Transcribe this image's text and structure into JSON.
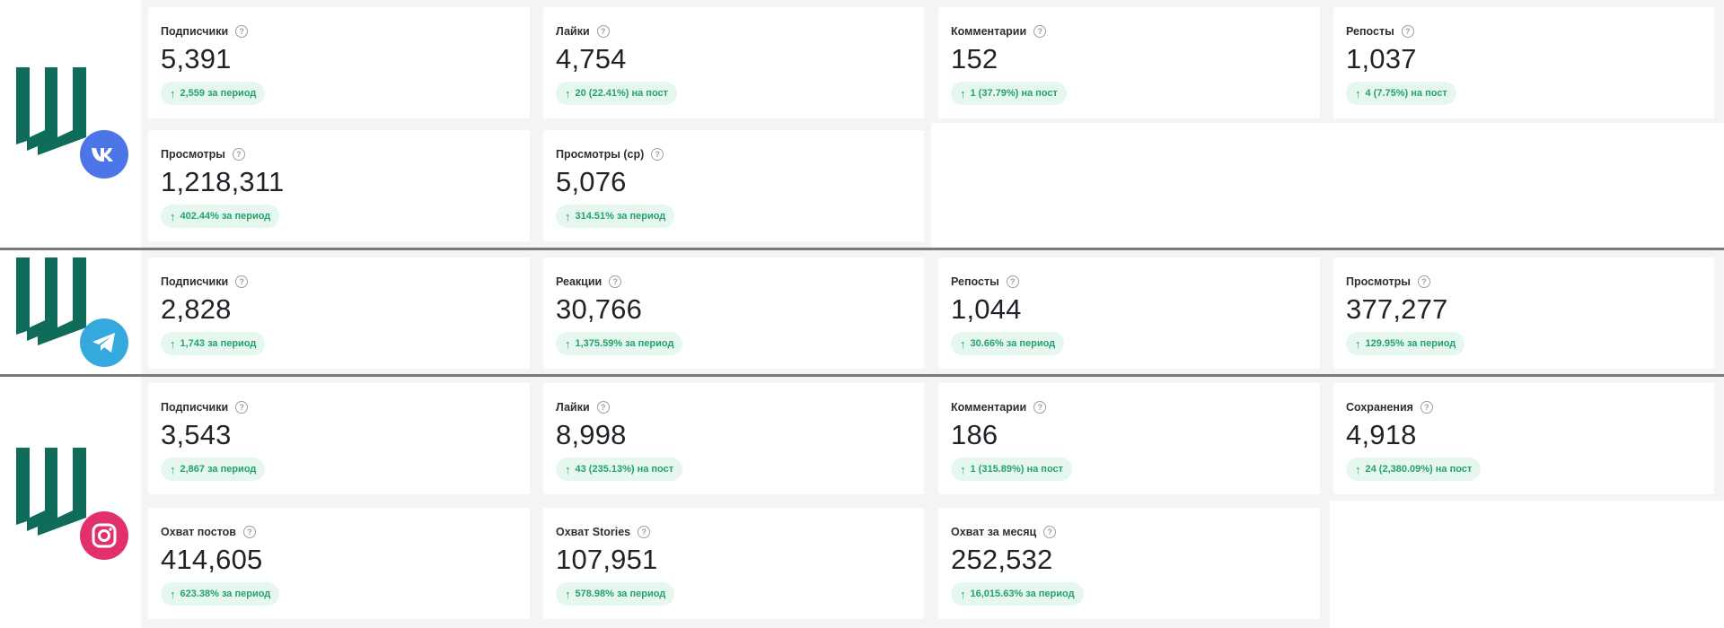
{
  "accent_color": "#23a36b",
  "brand_color": "#0f6b5a",
  "sections": [
    {
      "network": "vk",
      "network_icon": "vk-icon",
      "badge_color": "#4c75e8",
      "cards": [
        {
          "label": "Подписчики",
          "value": "5,391",
          "change": "2,559 за период"
        },
        {
          "label": "Лайки",
          "value": "4,754",
          "change": "20 (22.41%) на пост"
        },
        {
          "label": "Комментарии",
          "value": "152",
          "change": "1 (37.79%) на пост"
        },
        {
          "label": "Репосты",
          "value": "1,037",
          "change": "4 (7.75%) на пост"
        },
        {
          "label": "Просмотры",
          "value": "1,218,311",
          "change": "402.44% за период"
        },
        {
          "label": "Просмотры (ср)",
          "value": "5,076",
          "change": "314.51% за период"
        }
      ]
    },
    {
      "network": "telegram",
      "network_icon": "telegram-icon",
      "badge_color": "#35a8dd",
      "cards": [
        {
          "label": "Подписчики",
          "value": "2,828",
          "change": "1,743 за период"
        },
        {
          "label": "Реакции",
          "value": "30,766",
          "change": "1,375.59% за период"
        },
        {
          "label": "Репосты",
          "value": "1,044",
          "change": "30.66% за период"
        },
        {
          "label": "Просмотры",
          "value": "377,277",
          "change": "129.95% за период"
        }
      ]
    },
    {
      "network": "instagram",
      "network_icon": "instagram-icon",
      "badge_color": "#e1306c",
      "cards": [
        {
          "label": "Подписчики",
          "value": "3,543",
          "change": "2,867 за период"
        },
        {
          "label": "Лайки",
          "value": "8,998",
          "change": "43 (235.13%) на пост"
        },
        {
          "label": "Комментарии",
          "value": "186",
          "change": "1 (315.89%) на пост"
        },
        {
          "label": "Сохранения",
          "value": "4,918",
          "change": "24 (2,380.09%) на пост"
        },
        {
          "label": "Охват постов",
          "value": "414,605",
          "change": "623.38% за период"
        },
        {
          "label": "Охват Stories",
          "value": "107,951",
          "change": "578.98% за период"
        },
        {
          "label": "Охват за месяц",
          "value": "252,532",
          "change": "16,015.63% за период"
        }
      ]
    }
  ]
}
